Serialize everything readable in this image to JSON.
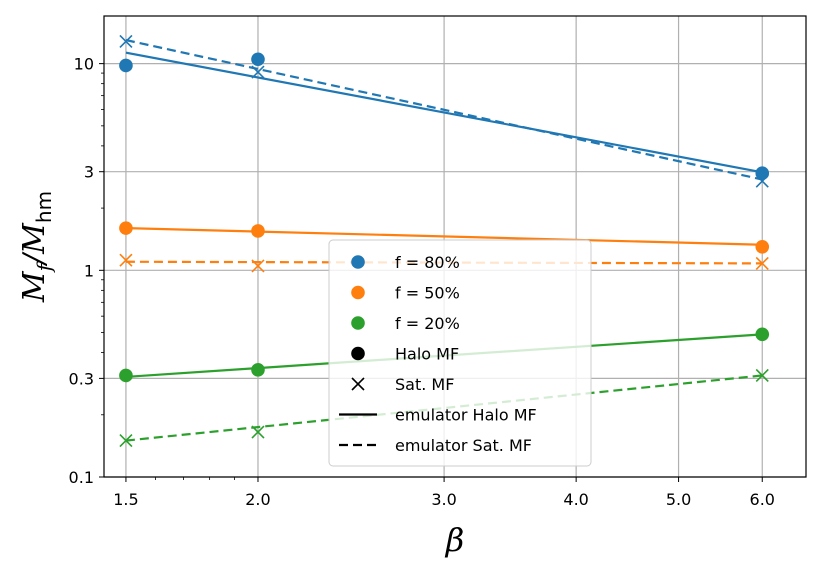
{
  "chart_data": {
    "type": "line",
    "title": "",
    "xlabel": "β",
    "ylabel": "M_f/M_hm",
    "ylabel_parts": {
      "main": "M",
      "sub1": "f",
      "slash": "/M",
      "sub2": "hm"
    },
    "xscale": "log",
    "yscale": "log",
    "xlim": [
      1.43,
      6.6
    ],
    "ylim": [
      0.1,
      17
    ],
    "grid": true,
    "legend_position": "center",
    "xticks": [
      {
        "value": 1.5,
        "label": "1.5"
      },
      {
        "value": 2.0,
        "label": "2.0"
      },
      {
        "value": 3.0,
        "label": "3.0"
      },
      {
        "value": 4.0,
        "label": "4.0"
      },
      {
        "value": 5.0,
        "label": "5.0"
      },
      {
        "value": 6.0,
        "label": "6.0"
      }
    ],
    "yticks": [
      {
        "value": 0.1,
        "label": "0.1"
      },
      {
        "value": 0.3,
        "label": "0.3"
      },
      {
        "value": 1,
        "label": "1"
      },
      {
        "value": 3,
        "label": "3"
      },
      {
        "value": 10,
        "label": "10"
      }
    ],
    "series": [
      {
        "name": "f = 80%",
        "color": "#1f77b4",
        "halo_points": {
          "x": [
            1.5,
            2.0,
            6.0
          ],
          "y": [
            9.8,
            10.5,
            2.95
          ]
        },
        "sat_points": {
          "x": [
            1.5,
            2.0,
            6.0
          ],
          "y": [
            12.8,
            9.1,
            2.7
          ]
        },
        "emu_halo": {
          "x": [
            1.5,
            6.0
          ],
          "y": [
            11.3,
            2.98
          ]
        },
        "emu_sat": {
          "x": [
            1.5,
            6.0
          ],
          "y": [
            13.0,
            2.75
          ]
        }
      },
      {
        "name": "f = 50%",
        "color": "#ff7f0e",
        "halo_points": {
          "x": [
            1.5,
            2.0,
            6.0
          ],
          "y": [
            1.6,
            1.55,
            1.3
          ]
        },
        "sat_points": {
          "x": [
            1.5,
            2.0,
            6.0
          ],
          "y": [
            1.12,
            1.05,
            1.08
          ]
        },
        "emu_halo": {
          "x": [
            1.5,
            6.0
          ],
          "y": [
            1.6,
            1.33
          ]
        },
        "emu_sat": {
          "x": [
            1.5,
            6.0
          ],
          "y": [
            1.1,
            1.08
          ]
        }
      },
      {
        "name": "f = 20%",
        "color": "#2ca02c",
        "halo_points": {
          "x": [
            1.5,
            2.0,
            6.0
          ],
          "y": [
            0.31,
            0.33,
            0.49
          ]
        },
        "sat_points": {
          "x": [
            1.5,
            2.0,
            6.0
          ],
          "y": [
            0.15,
            0.165,
            0.31
          ]
        },
        "emu_halo": {
          "x": [
            1.5,
            6.0
          ],
          "y": [
            0.305,
            0.49
          ]
        },
        "emu_sat": {
          "x": [
            1.5,
            6.0
          ],
          "y": [
            0.15,
            0.31
          ]
        }
      }
    ],
    "legend": [
      {
        "label": "f = 80%",
        "kind": "dot",
        "color": "#1f77b4"
      },
      {
        "label": "f = 50%",
        "kind": "dot",
        "color": "#ff7f0e"
      },
      {
        "label": "f = 20%",
        "kind": "dot",
        "color": "#2ca02c"
      },
      {
        "label": "Halo MF",
        "kind": "dot",
        "color": "#000000"
      },
      {
        "label": "Sat. MF",
        "kind": "cross",
        "color": "#000000"
      },
      {
        "label": "emulator Halo MF",
        "kind": "solid",
        "color": "#000000"
      },
      {
        "label": "emulator Sat. MF",
        "kind": "dashed",
        "color": "#000000"
      }
    ]
  }
}
